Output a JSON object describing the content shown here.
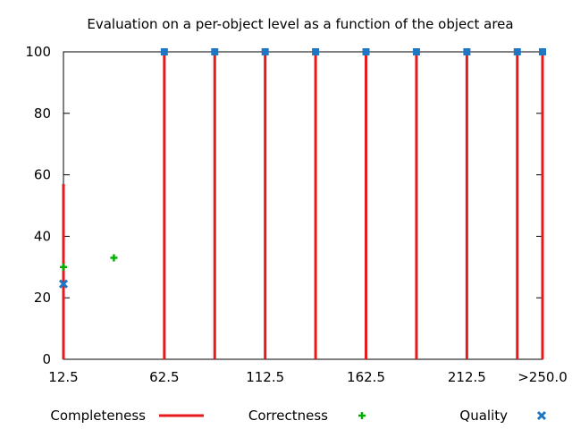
{
  "chart_data": {
    "type": "bar",
    "title": "Evaluation on a per-object level as a function of the object area",
    "xlabel": "",
    "ylabel": "",
    "x_ticks": [
      "12.5",
      "62.5",
      "112.5",
      "162.5",
      "212.5",
      ">250.0"
    ],
    "x_tick_positions": [
      12.5,
      62.5,
      112.5,
      162.5,
      212.5,
      250
    ],
    "xlim": [
      12.5,
      250
    ],
    "ylim": [
      0,
      100
    ],
    "y_ticks": [
      0,
      20,
      40,
      60,
      80,
      100
    ],
    "grid": false,
    "legend_position": "bottom",
    "series": [
      {
        "name": "Completeness",
        "style": "impulse",
        "color": "#e41a1c",
        "x": [
          12.5,
          62.5,
          87.5,
          112.5,
          137.5,
          162.5,
          187.5,
          212.5,
          237.5,
          250
        ],
        "values": [
          57,
          100,
          100,
          100,
          100,
          100,
          100,
          100,
          100,
          100
        ]
      },
      {
        "name": "Correctness",
        "style": "plus",
        "color": "#00b000",
        "x": [
          12.5,
          37.5
        ],
        "values": [
          30,
          33
        ]
      },
      {
        "name": "Quality",
        "style": "x",
        "color": "#1f77c4",
        "x": [
          12.5,
          62.5,
          87.5,
          112.5,
          137.5,
          162.5,
          187.5,
          212.5,
          237.5,
          250
        ],
        "values": [
          24.5,
          100,
          100,
          100,
          100,
          100,
          100,
          100,
          100,
          100
        ]
      }
    ]
  }
}
